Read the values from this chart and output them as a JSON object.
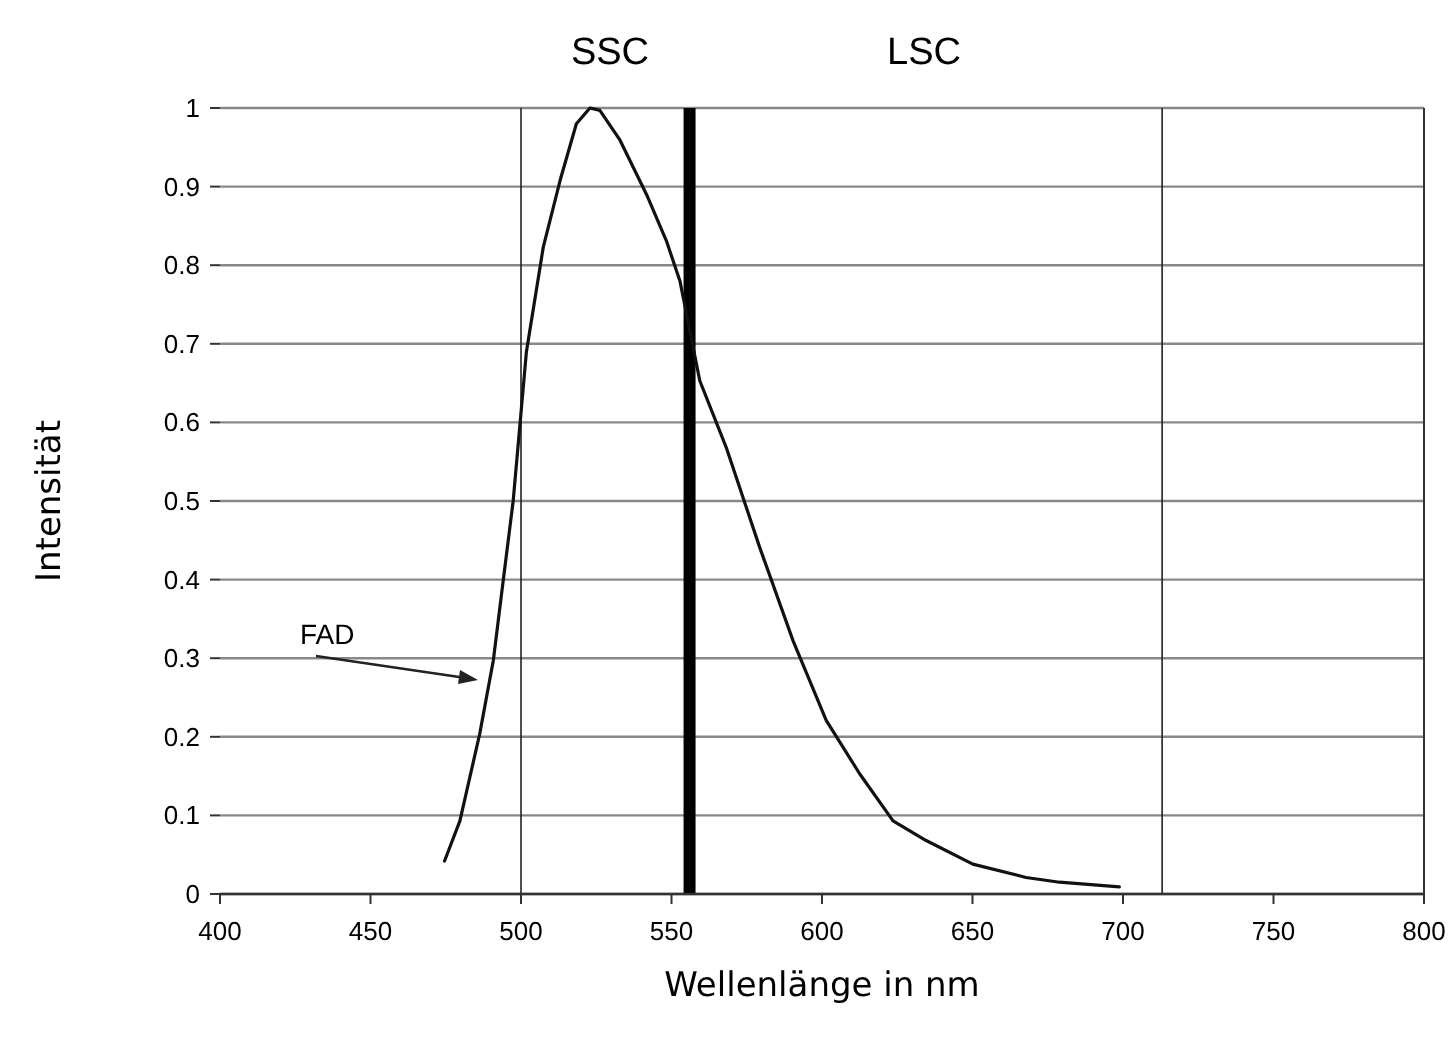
{
  "chart_data": {
    "type": "line",
    "xlabel": "Wellenlänge in nm",
    "ylabel": "Intensität",
    "xlim": [
      400,
      800
    ],
    "xticks": [
      400,
      450,
      500,
      550,
      600,
      650,
      700,
      750,
      800
    ],
    "ylim": [
      0,
      1
    ],
    "yticks": [
      0,
      0.1,
      0.2,
      0.3,
      0.4,
      0.5,
      0.6,
      0.7,
      0.8,
      0.9,
      1
    ],
    "grid": "y",
    "marker": "none",
    "line_style": "solid",
    "series": [
      {
        "color": "#111111",
        "x": [
          474.6,
          479.7,
          486.3,
          490.8,
          494.1,
          497.4,
          501.8,
          507.4,
          513,
          518.4,
          522.9,
          526.2,
          532.9,
          541.7,
          548.3,
          552.8,
          559.4,
          568.2,
          579.3,
          590.4,
          601.4,
          612.5,
          623.6,
          634.6,
          650.1,
          667.8,
          678.9,
          698.8
        ],
        "values": [
          0.042,
          0.093,
          0.204,
          0.297,
          0.399,
          0.5,
          0.69,
          0.823,
          0.908,
          0.98,
          1.0,
          0.997,
          0.959,
          0.89,
          0.831,
          0.78,
          0.653,
          0.568,
          0.441,
          0.322,
          0.221,
          0.153,
          0.093,
          0.068,
          0.038,
          0.021,
          0.015,
          0.009
        ]
      }
    ],
    "ref_lines": [
      {
        "axis": "x",
        "value": 556,
        "color": "#000000"
      },
      {
        "axis": "x",
        "value": 500,
        "color": "#222222"
      },
      {
        "axis": "x",
        "value": 713,
        "color": "#222222"
      }
    ],
    "annotations": [
      "SSC",
      "LSC",
      "FAD"
    ]
  }
}
